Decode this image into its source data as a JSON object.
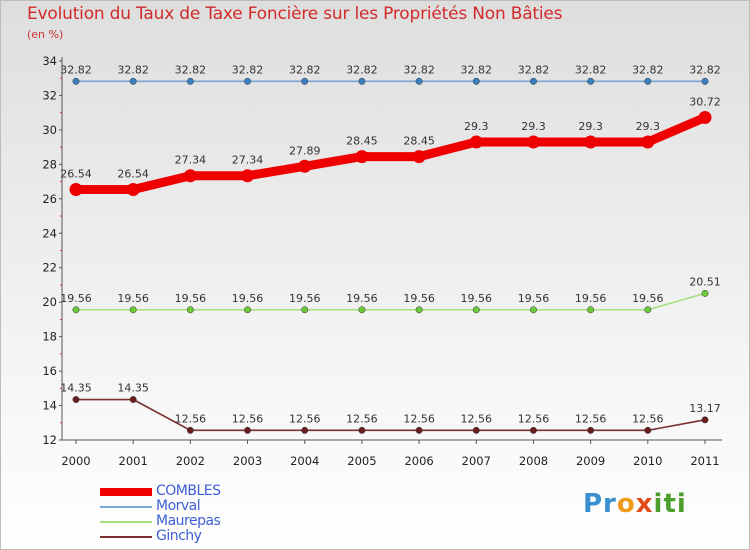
{
  "title": "Evolution du Taux de Taxe Foncière sur les Propriétés Non Bâties",
  "unit": "(en %)",
  "logo": {
    "text": "Proxiti",
    "colors": [
      "#3a8fd0",
      "#f09a1a",
      "#e14c1a",
      "#4c9e2a"
    ]
  },
  "chart_data": {
    "type": "line",
    "title": "Evolution du Taux de Taxe Foncière sur les Propriétés Non Bâties",
    "ylabel": "(en %)",
    "xlabel": "",
    "x": [
      "2000",
      "2001",
      "2002",
      "2003",
      "2004",
      "2005",
      "2006",
      "2007",
      "2008",
      "2009",
      "2010",
      "2011"
    ],
    "ylim": [
      12,
      34
    ],
    "yticks": [
      12,
      14,
      16,
      18,
      20,
      22,
      24,
      26,
      28,
      30,
      32,
      34
    ],
    "grid": false,
    "legend": "bottom-left",
    "series": [
      {
        "name": "COMBLES",
        "color": "#ee0000",
        "emphasis": true,
        "values": [
          26.54,
          26.54,
          27.34,
          27.34,
          27.89,
          28.45,
          28.45,
          29.3,
          29.3,
          29.3,
          29.3,
          30.72
        ],
        "labels": [
          "26.54",
          "26.54",
          "27.34",
          "27.34",
          "27.89",
          "28.45",
          "28.45",
          "29.3",
          "29.3",
          "29.3",
          "29.3",
          "30.72"
        ]
      },
      {
        "name": "Morval",
        "color": "#7aa6d4",
        "marker": "#3a7fc0",
        "values": [
          32.82,
          32.82,
          32.82,
          32.82,
          32.82,
          32.82,
          32.82,
          32.82,
          32.82,
          32.82,
          32.82,
          32.82
        ],
        "labels": [
          "32.82",
          "32.82",
          "32.82",
          "32.82",
          "32.82",
          "32.82",
          "32.82",
          "32.82",
          "32.82",
          "32.82",
          "32.82",
          "32.82"
        ]
      },
      {
        "name": "Maurepas",
        "color": "#a6e07a",
        "marker": "#6cc93a",
        "values": [
          19.56,
          19.56,
          19.56,
          19.56,
          19.56,
          19.56,
          19.56,
          19.56,
          19.56,
          19.56,
          19.56,
          20.51
        ],
        "labels": [
          "19.56",
          "19.56",
          "19.56",
          "19.56",
          "19.56",
          "19.56",
          "19.56",
          "19.56",
          "19.56",
          "19.56",
          "19.56",
          "20.51"
        ]
      },
      {
        "name": "Ginchy",
        "color": "#7a3030",
        "marker": "#6a1e1e",
        "values": [
          14.35,
          14.35,
          12.56,
          12.56,
          12.56,
          12.56,
          12.56,
          12.56,
          12.56,
          12.56,
          12.56,
          13.17
        ],
        "labels": [
          "14.35",
          "14.35",
          "12.56",
          "12.56",
          "12.56",
          "12.56",
          "12.56",
          "12.56",
          "12.56",
          "12.56",
          "12.56",
          "13.17"
        ]
      }
    ]
  }
}
